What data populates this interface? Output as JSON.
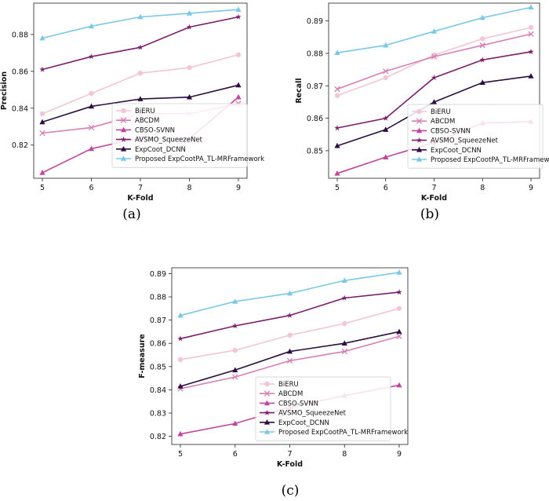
{
  "panels": [
    "(a)",
    "(b)",
    "(c)"
  ],
  "series_colors": [
    "#f2c6d6",
    "#d67fb4",
    "#c2459c",
    "#7a1e6c",
    "#2b0f40",
    "#7ac8e6"
  ],
  "series_markers": [
    "circle",
    "x",
    "tri",
    "star",
    "tri",
    "tri"
  ],
  "chart_data": [
    {
      "type": "line",
      "xlabel": "K-Fold",
      "ylabel": "Precision",
      "x": [
        5,
        6,
        7,
        8,
        9
      ],
      "xlim": [
        5,
        9
      ],
      "ylim": [
        0.802,
        0.897
      ],
      "yticks": [
        0.82,
        0.84,
        0.86,
        0.88
      ],
      "ytick_labels": [
        "0.82",
        "0.84",
        "0.86",
        "0.88"
      ],
      "series": [
        {
          "name": "BiERU",
          "values": [
            0.837,
            0.848,
            0.859,
            0.862,
            0.869
          ]
        },
        {
          "name": "ABCDM",
          "values": [
            0.8265,
            0.8295,
            0.837,
            0.837,
            0.8425
          ]
        },
        {
          "name": "CBSO-SVNN",
          "values": [
            0.805,
            0.818,
            0.824,
            0.8235,
            0.846
          ]
        },
        {
          "name": "AVSMO_SqueezeNet",
          "values": [
            0.861,
            0.868,
            0.873,
            0.884,
            0.8895
          ]
        },
        {
          "name": "ExpCoot_DCNN",
          "values": [
            0.8325,
            0.841,
            0.845,
            0.846,
            0.8525
          ]
        },
        {
          "name": "Proposed ExpCootPA_TL-MRFramework",
          "values": [
            0.878,
            0.8845,
            0.8895,
            0.8915,
            0.8935
          ]
        }
      ],
      "legend": "lower-right"
    },
    {
      "type": "line",
      "xlabel": "K-Fold",
      "ylabel": "Recall",
      "x": [
        5,
        6,
        7,
        8,
        9
      ],
      "xlim": [
        5,
        9
      ],
      "ylim": [
        0.8415,
        0.8955
      ],
      "yticks": [
        0.85,
        0.86,
        0.87,
        0.88,
        0.89
      ],
      "ytick_labels": [
        "0.85",
        "0.86",
        "0.87",
        "0.88",
        "0.89"
      ],
      "series": [
        {
          "name": "BiERU",
          "values": [
            0.867,
            0.8725,
            0.8795,
            0.8845,
            0.888
          ]
        },
        {
          "name": "ABCDM",
          "values": [
            0.869,
            0.8745,
            0.879,
            0.8825,
            0.886
          ]
        },
        {
          "name": "CBSO-SVNN",
          "values": [
            0.843,
            0.848,
            0.8525,
            0.8585,
            0.859
          ]
        },
        {
          "name": "AVSMO_SqueezeNet",
          "values": [
            0.857,
            0.86,
            0.8725,
            0.878,
            0.8805
          ]
        },
        {
          "name": "ExpCoot_DCNN",
          "values": [
            0.8515,
            0.8565,
            0.865,
            0.871,
            0.873
          ]
        },
        {
          "name": "Proposed ExpCootPA_TL-MRFramework",
          "values": [
            0.8802,
            0.8825,
            0.8868,
            0.891,
            0.8942
          ]
        }
      ],
      "legend": "lower-right"
    },
    {
      "type": "line",
      "xlabel": "K-Fold",
      "ylabel": "F-measure",
      "x": [
        5,
        6,
        7,
        8,
        9
      ],
      "xlim": [
        5,
        9
      ],
      "ylim": [
        0.8165,
        0.8925
      ],
      "yticks": [
        0.82,
        0.83,
        0.84,
        0.85,
        0.86,
        0.87,
        0.88,
        0.89
      ],
      "ytick_labels": [
        "0.82",
        "0.83",
        "0.84",
        "0.85",
        "0.86",
        "0.87",
        "0.88",
        "0.89"
      ],
      "series": [
        {
          "name": "BiERU",
          "values": [
            0.853,
            0.857,
            0.8635,
            0.8685,
            0.875
          ]
        },
        {
          "name": "ABCDM",
          "values": [
            0.8405,
            0.8455,
            0.8525,
            0.8565,
            0.863
          ]
        },
        {
          "name": "CBSO-SVNN",
          "values": [
            0.821,
            0.8255,
            0.8325,
            0.8375,
            0.842
          ]
        },
        {
          "name": "AVSMO_SqueezeNet",
          "values": [
            0.862,
            0.8675,
            0.872,
            0.8795,
            0.882
          ]
        },
        {
          "name": "ExpCoot_DCNN",
          "values": [
            0.8415,
            0.8485,
            0.8565,
            0.86,
            0.865
          ]
        },
        {
          "name": "Proposed ExpCootPA_TL-MRFramework",
          "values": [
            0.872,
            0.878,
            0.8815,
            0.887,
            0.8905
          ]
        }
      ],
      "legend": "lower-right"
    }
  ]
}
